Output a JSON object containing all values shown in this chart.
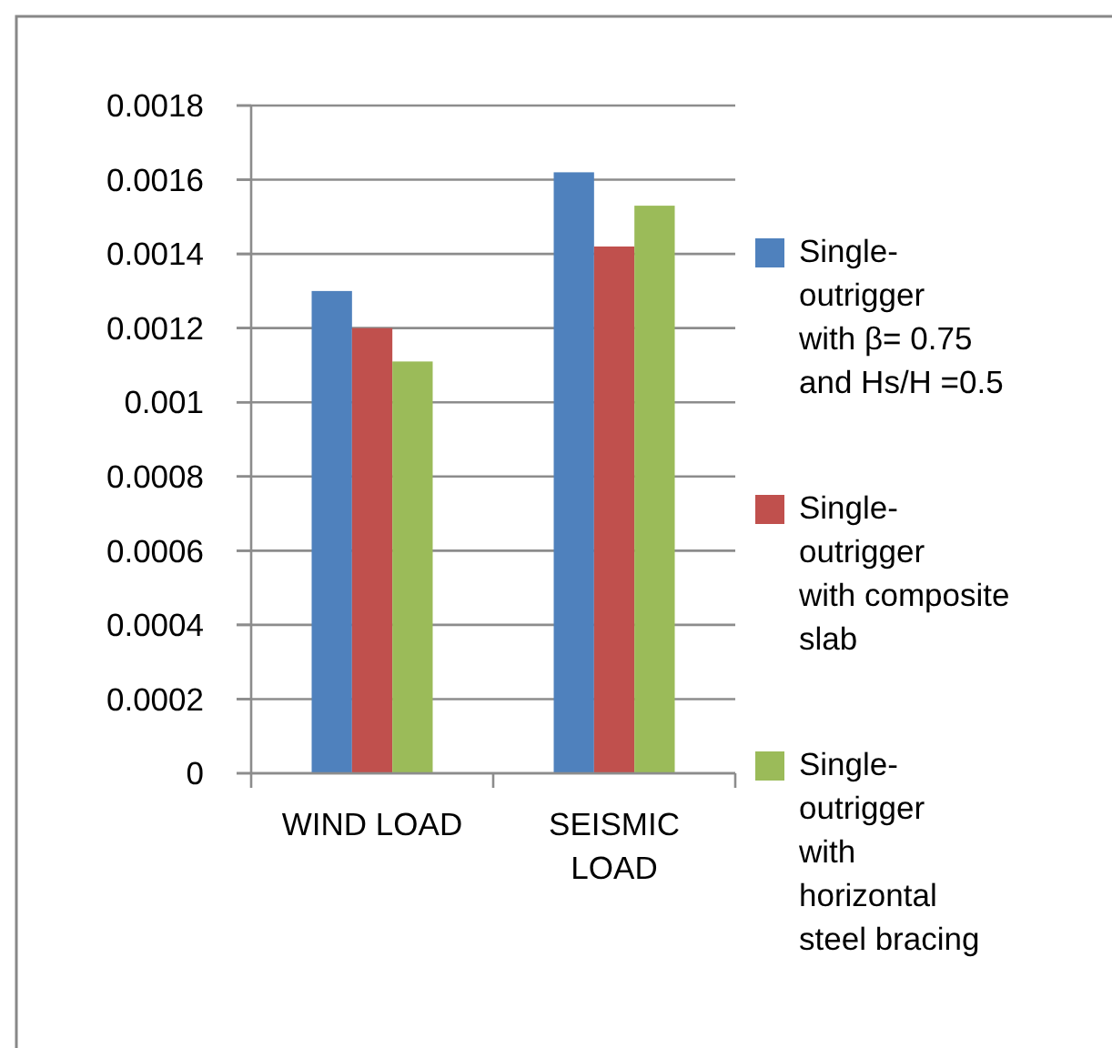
{
  "chart_data": {
    "type": "bar",
    "categories": [
      "WIND LOAD",
      "SEISMIC LOAD"
    ],
    "series": [
      {
        "name": "Single-outrigger with β= 0.75 and Hs/H =0.5",
        "color": "#4f81bd",
        "values": [
          0.0013,
          0.00162
        ]
      },
      {
        "name": "Single-outrigger with composite slab",
        "color": "#c0504d",
        "values": [
          0.0012,
          0.00142
        ]
      },
      {
        "name": "Single-outrigger with horizontal steel bracing",
        "color": "#9bbb59",
        "values": [
          0.00111,
          0.00153
        ]
      }
    ],
    "ylim": [
      0,
      0.0018
    ],
    "yticks": [
      0,
      0.0002,
      0.0004,
      0.0006,
      0.0008,
      0.001,
      0.0012,
      0.0014,
      0.0016,
      0.0018
    ],
    "grid": "y",
    "legend": "right"
  }
}
